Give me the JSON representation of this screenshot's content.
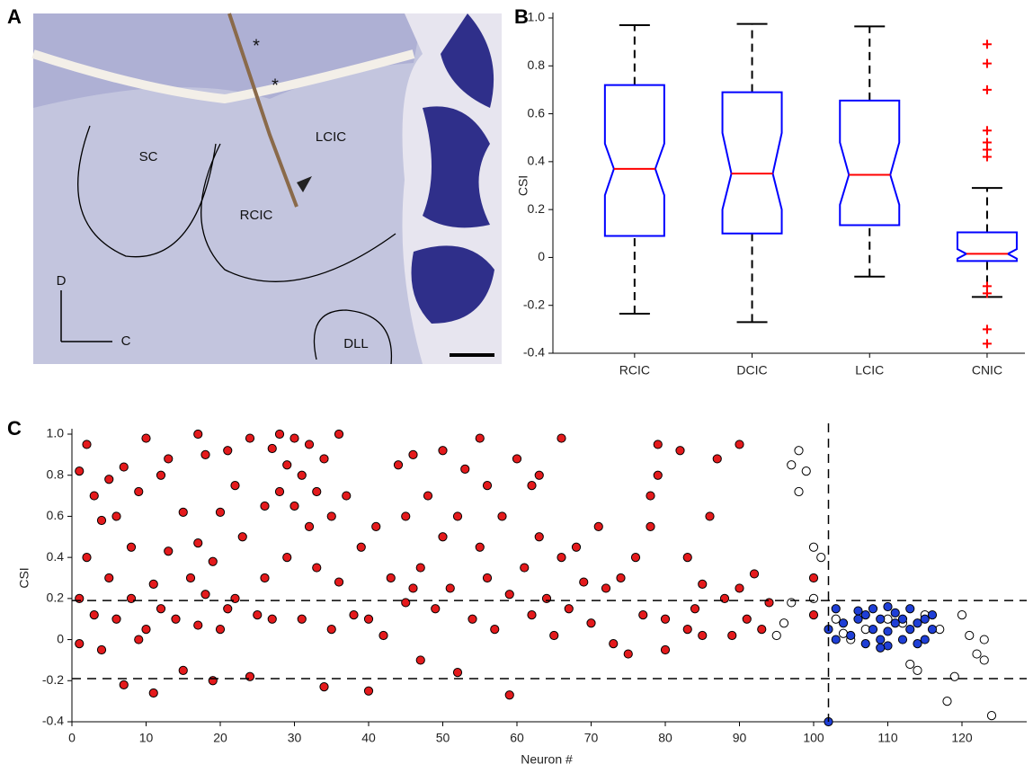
{
  "panel_labels": [
    "A",
    "B",
    "C"
  ],
  "panel_a": {
    "labels": [
      "SC",
      "LCIC",
      "RCIC",
      "DLL",
      "D",
      "C",
      "*",
      "*"
    ]
  },
  "chart_data": [
    {
      "type": "box",
      "ylabel": "CSI",
      "categories": [
        "RCIC",
        "DCIC",
        "LCIC",
        "CNIC"
      ],
      "box_color": "#0000ff",
      "median_color": "#ff0000",
      "whisker_color": "#000000",
      "outlier_color": "#ff0000",
      "ylim": [
        -0.4,
        1.0
      ],
      "yticks": [
        {
          "value": -0.4,
          "label": "-0.4"
        },
        -0.2,
        0,
        0.2,
        0.4,
        0.6,
        0.8,
        {
          "value": 1.0,
          "label": "1.0"
        }
      ],
      "boxes": [
        {
          "whisker_low": -0.235,
          "q1": 0.09,
          "notch_low": 0.26,
          "median": 0.37,
          "notch_high": 0.475,
          "q3": 0.72,
          "whisker_high": 0.97,
          "outliers": []
        },
        {
          "whisker_low": -0.27,
          "q1": 0.1,
          "notch_low": 0.2,
          "median": 0.35,
          "notch_high": 0.52,
          "q3": 0.69,
          "whisker_high": 0.975,
          "outliers": []
        },
        {
          "whisker_low": -0.08,
          "q1": 0.135,
          "notch_low": 0.22,
          "median": 0.345,
          "notch_high": 0.48,
          "q3": 0.655,
          "whisker_high": 0.965,
          "outliers": []
        },
        {
          "whisker_low": -0.165,
          "q1": -0.015,
          "notch_low": -0.005,
          "median": 0.015,
          "notch_high": 0.035,
          "q3": 0.105,
          "whisker_high": 0.29,
          "outliers": [
            0.89,
            0.81,
            0.7,
            0.53,
            0.48,
            0.45,
            0.42,
            -0.12,
            -0.15,
            -0.3,
            -0.36
          ]
        }
      ]
    },
    {
      "type": "scatter",
      "xlabel": "Neuron #",
      "ylabel": "CSI",
      "xlim": [
        0,
        128
      ],
      "xticks": [
        0,
        10,
        20,
        30,
        40,
        50,
        60,
        70,
        80,
        90,
        100,
        110,
        120
      ],
      "ylim": [
        -0.4,
        1.0
      ],
      "yticks": [
        {
          "value": -0.4,
          "label": "-0.4"
        },
        -0.2,
        0,
        0.2,
        0.4,
        0.6,
        0.8,
        {
          "value": 1.0,
          "label": "1.0"
        }
      ],
      "hlines": [
        0.19,
        -0.19
      ],
      "vlines": [
        102
      ],
      "series": [
        {
          "color": "#e41a1c",
          "edgecolor": "#000000",
          "x": [
            1,
            1,
            1,
            2,
            2,
            3,
            3,
            4,
            4,
            5,
            5,
            6,
            6,
            7,
            7,
            8,
            8,
            9,
            9,
            10,
            10,
            11,
            11,
            12,
            12,
            13,
            13,
            14,
            15,
            15,
            16,
            17,
            17,
            17,
            18,
            18,
            19,
            19,
            20,
            20,
            21,
            21,
            22,
            22,
            23,
            24,
            24,
            25,
            26,
            26,
            27,
            27,
            28,
            28,
            29,
            29,
            30,
            30,
            31,
            31,
            32,
            32,
            33,
            33,
            34,
            34,
            35,
            35,
            36,
            36,
            37,
            38,
            39,
            40,
            40,
            41,
            42,
            43,
            44,
            45,
            45,
            46,
            46,
            47,
            47,
            48,
            49,
            50,
            50,
            51,
            52,
            52,
            53,
            54,
            55,
            55,
            56,
            56,
            57,
            58,
            59,
            59,
            60,
            61,
            62,
            62,
            63,
            63,
            64,
            65,
            66,
            66,
            67,
            68,
            69,
            70,
            71,
            72,
            73,
            74,
            75,
            76,
            77,
            78,
            78,
            79,
            79,
            80,
            80,
            82,
            83,
            83,
            84,
            85,
            85,
            86,
            87,
            88,
            89,
            90,
            90,
            91,
            92,
            93,
            94,
            100,
            100
          ],
          "values": [
            0.82,
            0.2,
            -0.02,
            0.4,
            0.95,
            0.12,
            0.7,
            0.58,
            -0.05,
            0.3,
            0.78,
            0.1,
            0.6,
            -0.22,
            0.84,
            0.45,
            0.2,
            0.72,
            0.0,
            0.98,
            0.05,
            -0.26,
            0.27,
            0.8,
            0.15,
            0.43,
            0.88,
            0.1,
            0.62,
            -0.15,
            0.3,
            1.0,
            0.07,
            0.47,
            0.22,
            0.9,
            -0.2,
            0.38,
            0.05,
            0.62,
            0.92,
            0.15,
            0.2,
            0.75,
            0.5,
            -0.18,
            0.98,
            0.12,
            0.65,
            0.3,
            0.93,
            0.1,
            0.72,
            1.0,
            0.4,
            0.85,
            0.98,
            0.65,
            0.8,
            0.1,
            0.55,
            0.95,
            0.35,
            0.72,
            -0.23,
            0.88,
            0.05,
            0.6,
            1.0,
            0.28,
            0.7,
            0.12,
            0.45,
            -0.25,
            0.1,
            0.55,
            0.02,
            0.3,
            0.85,
            0.6,
            0.18,
            0.9,
            0.25,
            0.35,
            -0.1,
            0.7,
            0.15,
            0.5,
            0.92,
            0.25,
            -0.16,
            0.6,
            0.83,
            0.1,
            0.98,
            0.45,
            0.3,
            0.75,
            0.05,
            0.6,
            -0.27,
            0.22,
            0.88,
            0.35,
            0.12,
            0.75,
            0.5,
            0.8,
            0.2,
            0.02,
            0.98,
            0.4,
            0.15,
            0.45,
            0.28,
            0.08,
            0.55,
            0.25,
            -0.02,
            0.3,
            -0.07,
            0.4,
            0.12,
            0.55,
            0.7,
            0.95,
            0.8,
            0.1,
            -0.05,
            0.92,
            0.4,
            0.05,
            0.15,
            0.27,
            0.02,
            0.6,
            0.88,
            0.2,
            0.02,
            0.95,
            0.25,
            0.1,
            0.32,
            0.05,
            0.18,
            0.3,
            0.12
          ]
        },
        {
          "color": "#ffffff",
          "edgecolor": "#000000",
          "x": [
            95,
            96,
            97,
            97,
            98,
            98,
            99,
            100,
            100,
            101,
            103,
            104,
            105,
            107,
            110,
            112,
            113,
            114,
            115,
            117,
            118,
            119,
            120,
            121,
            122,
            123,
            123,
            124
          ],
          "values": [
            0.02,
            0.08,
            0.85,
            0.18,
            0.72,
            0.92,
            0.82,
            0.45,
            0.2,
            0.4,
            0.1,
            0.03,
            0.0,
            0.05,
            0.1,
            0.08,
            -0.12,
            -0.15,
            0.12,
            0.05,
            -0.3,
            -0.18,
            0.12,
            0.02,
            -0.07,
            -0.1,
            0.0,
            -0.37
          ]
        },
        {
          "color": "#1f3fd6",
          "edgecolor": "#000000",
          "x": [
            102,
            102,
            103,
            103,
            104,
            105,
            106,
            107,
            107,
            108,
            108,
            109,
            109,
            110,
            110,
            110,
            111,
            111,
            112,
            112,
            113,
            113,
            114,
            114,
            115,
            115,
            116,
            116,
            106,
            109
          ],
          "values": [
            -0.4,
            0.05,
            0.15,
            0.0,
            0.08,
            0.02,
            0.1,
            0.12,
            -0.02,
            0.05,
            0.15,
            0.0,
            0.1,
            0.16,
            0.04,
            -0.03,
            0.08,
            0.13,
            0.0,
            0.1,
            0.05,
            0.15,
            -0.02,
            0.08,
            0.1,
            0.0,
            0.05,
            0.12,
            0.14,
            -0.04
          ]
        }
      ]
    }
  ]
}
